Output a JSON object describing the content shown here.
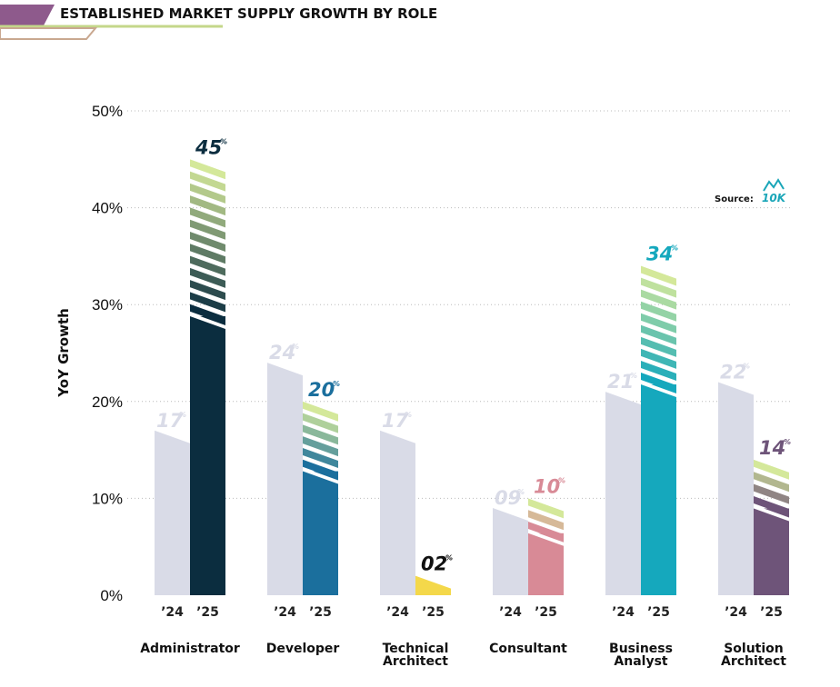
{
  "title": "ESTABLISHED MARKET SUPPLY GROWTH BY ROLE",
  "source": {
    "label": "Source:",
    "logo_text": "10K",
    "logo_color": "#1aa6b8"
  },
  "chart_data": {
    "type": "bar",
    "title": "ESTABLISHED MARKET SUPPLY GROWTH BY ROLE",
    "xlabel": "",
    "ylabel": "YoY Growth",
    "ylim": [
      0,
      50
    ],
    "yticks": [
      0,
      10,
      20,
      30,
      40,
      50
    ],
    "ytick_labels": [
      "0%",
      "10%",
      "20%",
      "30%",
      "40%",
      "50%"
    ],
    "grid": true,
    "year_labels": [
      "’24",
      "’25"
    ],
    "categories": [
      "Administrator",
      "Developer",
      "Technical Architect",
      "Consultant",
      "Business Analyst",
      "Solution Architect"
    ],
    "category_lines": [
      [
        "Administrator"
      ],
      [
        "Developer"
      ],
      [
        "Technical",
        "Architect"
      ],
      [
        "Consultant"
      ],
      [
        "Business",
        "Analyst"
      ],
      [
        "Solution",
        "Architect"
      ]
    ],
    "series": [
      {
        "name": "’24",
        "values": [
          17,
          24,
          17,
          9,
          21,
          22
        ],
        "labels": [
          "17",
          "24",
          "17",
          "09",
          "21",
          "22"
        ],
        "color": "#d9dbe7"
      },
      {
        "name": "’25",
        "values": [
          45,
          20,
          2,
          10,
          34,
          14
        ],
        "labels": [
          "45",
          "20",
          "02",
          "10",
          "34",
          "14"
        ],
        "colors": [
          "#0b2d3f",
          "#1b6f9d",
          "#f4d84a",
          "#d88a96",
          "#15a8bd",
          "#6e5479"
        ],
        "label_colors": [
          "#0b2d3f",
          "#1b6f9d",
          "#111111",
          "#d88a96",
          "#15a8bd",
          "#6e5479"
        ]
      }
    ],
    "value_suffix": "%"
  }
}
